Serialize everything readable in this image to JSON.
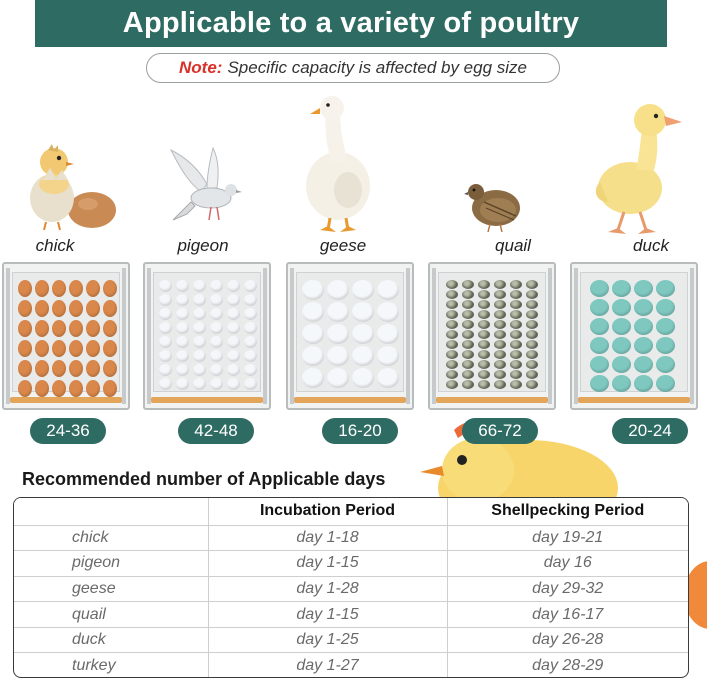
{
  "header": {
    "title": "Applicable to a variety of poultry",
    "note_label": "Note:",
    "note_text": "Specific capacity is affected by egg size"
  },
  "animals": [
    {
      "name": "chick",
      "capacity": "24-36",
      "egg_color": "#d9874a",
      "icon": "chick-hatching-icon"
    },
    {
      "name": "pigeon",
      "capacity": "42-48",
      "egg_color": "#f4f7fa",
      "icon": "pigeon-icon"
    },
    {
      "name": "geese",
      "capacity": "16-20",
      "egg_color": "#f5f8fb",
      "icon": "goose-icon"
    },
    {
      "name": "quail",
      "capacity": "66-72",
      "egg_color": "#8c9080",
      "icon": "quail-icon"
    },
    {
      "name": "duck",
      "capacity": "20-24",
      "egg_color": "#7ec8c0",
      "icon": "duckling-icon"
    }
  ],
  "section": {
    "title": "Recommended number of Applicable days"
  },
  "table": {
    "headers": [
      "",
      "Incubation Period",
      "Shellpecking Period"
    ],
    "rows": [
      [
        "chick",
        "day  1-18",
        "day  19-21"
      ],
      [
        "pigeon",
        "day  1-15",
        "day  16"
      ],
      [
        "geese",
        "day  1-28",
        "day  29-32"
      ],
      [
        "quail",
        "day  1-15",
        "day  16-17"
      ],
      [
        "duck",
        "day  1-25",
        "day  26-28"
      ],
      [
        "turkey",
        "day  1-27",
        "day  28-29"
      ]
    ]
  },
  "colors": {
    "accent": "#2e6b63",
    "note_red": "#d9302a"
  }
}
